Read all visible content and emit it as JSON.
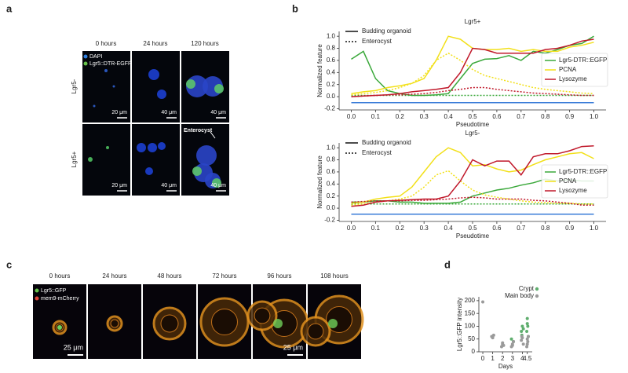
{
  "panel_labels": [
    "a",
    "b",
    "c",
    "d"
  ],
  "panel_a": {
    "columns": [
      "0 hours",
      "24 hours",
      "120 hours"
    ],
    "rows": [
      "Lgr5-",
      "Lgr5+"
    ],
    "legend": [
      "DAPI",
      "Lgr5::DTR-EGFP"
    ],
    "legend_colors": [
      "#2f7fe0",
      "#66c24a"
    ],
    "scale_bars": [
      [
        "20 μm",
        "40 μm",
        "40 μm"
      ],
      [
        "20 μm",
        "40 μm",
        "40 μm"
      ]
    ],
    "annotation": "Enterocyst"
  },
  "panel_c": {
    "columns": [
      "0 hours",
      "24 hours",
      "48 hours",
      "72 hours",
      "96 hours",
      "108 hours"
    ],
    "legend": [
      "Lgr5::GFP",
      "mem9-mCherry"
    ],
    "legend_colors": [
      "#66c24a",
      "#e0453a"
    ],
    "scale_bars": [
      "25 μm",
      "25 μm"
    ]
  },
  "chart_data": [
    {
      "type": "line",
      "title": "Lgr5+",
      "xlabel": "Pseudotime",
      "ylabel": "Normalized feature",
      "x": [
        0,
        0.05,
        0.1,
        0.15,
        0.2,
        0.25,
        0.3,
        0.35,
        0.4,
        0.45,
        0.5,
        0.55,
        0.6,
        0.65,
        0.7,
        0.75,
        0.8,
        0.85,
        0.9,
        0.95,
        1.0
      ],
      "xlim": [
        -0.05,
        1.05
      ],
      "ylim": [
        -0.22,
        1.08
      ],
      "xticks": [
        {
          "value": 0,
          "label": "0.0"
        },
        0.1,
        0.2,
        0.3,
        0.4,
        0.5,
        0.6,
        0.7,
        0.8,
        0.9,
        {
          "value": 1,
          "label": "1.0"
        }
      ],
      "yticks": [
        -0.2,
        {
          "value": 0,
          "label": "0.0"
        },
        0.2,
        0.4,
        0.6,
        0.8,
        {
          "value": 1,
          "label": "1.0"
        }
      ],
      "line_styles": [
        {
          "label": "Budding organoid",
          "dash": "solid"
        },
        {
          "label": "Enterocyst",
          "dash": "dotted"
        }
      ],
      "series": [
        {
          "name": "Lgr5-DTR::EGFP",
          "color": "#3aa83a",
          "values": [
            0.62,
            0.75,
            0.3,
            0.1,
            0.05,
            0.02,
            0.02,
            0.03,
            0.05,
            0.3,
            0.55,
            0.62,
            0.63,
            0.68,
            0.6,
            0.75,
            0.72,
            0.78,
            0.85,
            0.88,
            1.0
          ],
          "dotted_values": [
            0.02,
            0.02,
            0.02,
            0.02,
            0.02,
            0.02,
            0.02,
            0.02,
            0.02,
            0.02,
            0.02,
            0.02,
            0.02,
            0.02,
            0.02,
            0.02,
            0.02,
            0.02,
            0.02,
            0.02,
            0.02
          ]
        },
        {
          "name": "PCNA",
          "color": "#f2e019",
          "values": [
            0.05,
            0.08,
            0.1,
            0.15,
            0.18,
            0.22,
            0.3,
            0.6,
            1.0,
            0.95,
            0.8,
            0.78,
            0.78,
            0.8,
            0.75,
            0.78,
            0.75,
            0.75,
            0.82,
            0.85,
            0.9
          ],
          "dotted_values": [
            0.03,
            0.05,
            0.07,
            0.1,
            0.15,
            0.22,
            0.35,
            0.6,
            0.72,
            0.6,
            0.45,
            0.35,
            0.3,
            0.25,
            0.2,
            0.15,
            0.12,
            0.1,
            0.08,
            0.06,
            0.05
          ]
        },
        {
          "name": "Lysozyme",
          "color": "#c0182a",
          "values": [
            0.0,
            0.01,
            0.02,
            0.03,
            0.05,
            0.08,
            0.1,
            0.12,
            0.15,
            0.4,
            0.8,
            0.78,
            0.72,
            0.72,
            0.72,
            0.72,
            0.78,
            0.8,
            0.85,
            0.92,
            0.95
          ],
          "dotted_values": [
            0.0,
            0.01,
            0.02,
            0.03,
            0.03,
            0.04,
            0.05,
            0.07,
            0.1,
            0.12,
            0.15,
            0.15,
            0.12,
            0.1,
            0.08,
            0.06,
            0.05,
            0.04,
            0.03,
            0.02,
            0.02
          ]
        },
        {
          "color": "#3b7dd8",
          "values": [
            -0.1,
            -0.1,
            -0.1,
            -0.1,
            -0.1,
            -0.1,
            -0.1,
            -0.1,
            -0.1,
            -0.1,
            -0.1,
            -0.1,
            -0.1,
            -0.1,
            -0.1,
            -0.1,
            -0.1,
            -0.1,
            -0.1,
            -0.1,
            -0.1
          ]
        }
      ]
    },
    {
      "type": "line",
      "title": "Lgr5-",
      "xlabel": "Pseudotime",
      "ylabel": "Normalized feature",
      "x": [
        0,
        0.05,
        0.1,
        0.15,
        0.2,
        0.25,
        0.3,
        0.35,
        0.4,
        0.45,
        0.5,
        0.55,
        0.6,
        0.65,
        0.7,
        0.75,
        0.8,
        0.85,
        0.9,
        0.95,
        1.0
      ],
      "xlim": [
        -0.05,
        1.05
      ],
      "ylim": [
        -0.22,
        1.08
      ],
      "xticks": [
        {
          "value": 0,
          "label": "0.0"
        },
        0.1,
        0.2,
        0.3,
        0.4,
        0.5,
        0.6,
        0.7,
        0.8,
        0.9,
        {
          "value": 1,
          "label": "1.0"
        }
      ],
      "yticks": [
        -0.2,
        {
          "value": 0,
          "label": "0.0"
        },
        0.2,
        0.4,
        0.6,
        0.8,
        {
          "value": 1,
          "label": "1.0"
        }
      ],
      "line_styles": [
        {
          "label": "Budding organoid",
          "dash": "solid"
        },
        {
          "label": "Enterocyst",
          "dash": "dotted"
        }
      ],
      "series": [
        {
          "name": "Lgr5-DTR::EGFP",
          "color": "#3aa83a",
          "values": [
            0.1,
            0.1,
            0.12,
            0.12,
            0.1,
            0.1,
            0.08,
            0.08,
            0.08,
            0.1,
            0.2,
            0.25,
            0.3,
            0.33,
            0.38,
            0.42,
            0.48,
            0.45,
            0.47,
            0.45,
            0.45
          ],
          "dotted_values": [
            0.07,
            0.07,
            0.07,
            0.07,
            0.07,
            0.07,
            0.07,
            0.07,
            0.07,
            0.07,
            0.07,
            0.07,
            0.07,
            0.07,
            0.07,
            0.07,
            0.07,
            0.07,
            0.07,
            0.07,
            0.07
          ]
        },
        {
          "name": "PCNA",
          "color": "#f2e019",
          "values": [
            0.08,
            0.1,
            0.15,
            0.18,
            0.2,
            0.35,
            0.6,
            0.85,
            1.0,
            0.92,
            0.7,
            0.72,
            0.65,
            0.6,
            0.63,
            0.72,
            0.8,
            0.85,
            0.9,
            0.92,
            0.82
          ],
          "dotted_values": [
            0.05,
            0.07,
            0.1,
            0.12,
            0.15,
            0.2,
            0.35,
            0.55,
            0.62,
            0.45,
            0.3,
            0.22,
            0.18,
            0.15,
            0.12,
            0.1,
            0.09,
            0.08,
            0.08,
            0.07,
            0.07
          ]
        },
        {
          "name": "Lysozyme",
          "color": "#c0182a",
          "values": [
            0.03,
            0.05,
            0.1,
            0.12,
            0.13,
            0.14,
            0.15,
            0.15,
            0.2,
            0.45,
            0.8,
            0.7,
            0.78,
            0.78,
            0.55,
            0.85,
            0.9,
            0.9,
            0.95,
            1.02,
            1.03
          ],
          "dotted_values": [
            0.1,
            0.11,
            0.12,
            0.12,
            0.12,
            0.13,
            0.13,
            0.14,
            0.15,
            0.17,
            0.18,
            0.17,
            0.15,
            0.15,
            0.15,
            0.13,
            0.12,
            0.1,
            0.08,
            0.05,
            0.05
          ]
        },
        {
          "color": "#3b7dd8",
          "values": [
            -0.1,
            -0.1,
            -0.1,
            -0.1,
            -0.1,
            -0.1,
            -0.1,
            -0.1,
            -0.1,
            -0.1,
            -0.1,
            -0.1,
            -0.1,
            -0.1,
            -0.1,
            -0.1,
            -0.1,
            -0.1,
            -0.1,
            -0.1,
            -0.1
          ]
        }
      ]
    },
    {
      "type": "scatter",
      "xlabel": "Days",
      "ylabel": "Lgr5::GFP intensity",
      "xlim": [
        -0.4,
        5.0
      ],
      "ylim": [
        0,
        215
      ],
      "xticks": [
        0,
        1,
        2,
        3,
        4,
        4.5
      ],
      "yticks": [
        0,
        50,
        100,
        150,
        200
      ],
      "series": [
        {
          "name": "Crypt",
          "color": "#5fae6e",
          "x": [
            2.9,
            3.1,
            3.9,
            4.0,
            4.1,
            3.95,
            4.5,
            4.45,
            4.55,
            4.5,
            4.6
          ],
          "values": [
            50,
            40,
            80,
            100,
            90,
            65,
            130,
            80,
            100,
            110,
            60
          ]
        },
        {
          "name": "Main body",
          "color": "#9a9a9a",
          "x": [
            0,
            1,
            1.1,
            0.9,
            1.9,
            2.0,
            2.1,
            2.0,
            2.9,
            3.0,
            3.1,
            3.0,
            3.9,
            4.0,
            4.1,
            3.95,
            4.45,
            4.5,
            4.55,
            4.5,
            4.6
          ],
          "values": [
            195,
            55,
            65,
            60,
            20,
            30,
            25,
            35,
            20,
            30,
            40,
            25,
            45,
            55,
            30,
            60,
            20,
            30,
            40,
            50,
            60
          ]
        }
      ]
    }
  ]
}
